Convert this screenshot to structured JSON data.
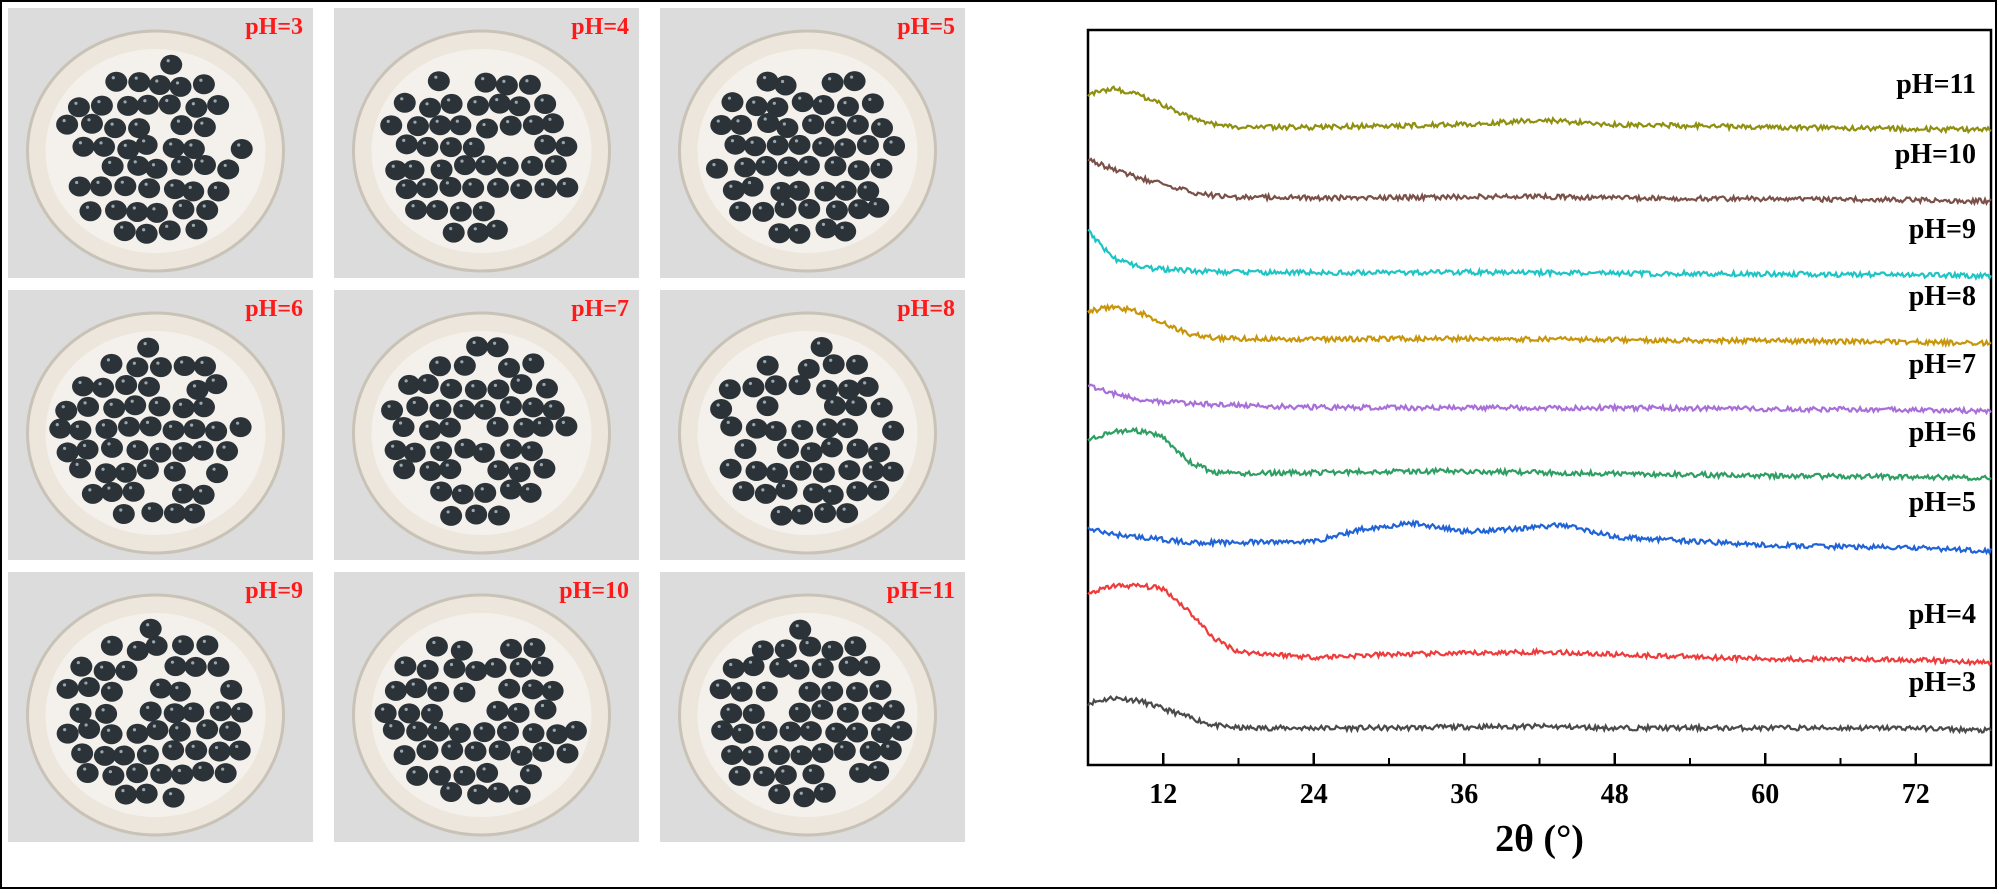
{
  "photos": [
    {
      "label": "pH=3"
    },
    {
      "label": "pH=4"
    },
    {
      "label": "pH=5"
    },
    {
      "label": "pH=6"
    },
    {
      "label": "pH=7"
    },
    {
      "label": "pH=8"
    },
    {
      "label": "pH=9"
    },
    {
      "label": "pH=10"
    },
    {
      "label": "pH=11"
    }
  ],
  "colors": {
    "label_red": "#ff1a1a",
    "bead": "#2b3338",
    "dish": "#ece6dc",
    "background": "#dcdcdc"
  },
  "chart_data": {
    "type": "line",
    "xlabel": "2θ (°)",
    "ylabel": "",
    "xlim": [
      6,
      78
    ],
    "xticks": [
      12,
      24,
      36,
      48,
      60,
      72
    ],
    "y_ticks_shown": false,
    "legend": "labels at right end of each curve",
    "note_values": "relative intensity, curves vertically stacked (offset)",
    "series": [
      {
        "name": "pH=3",
        "color": "#4a4a4a",
        "x": [
          6,
          8,
          10,
          12,
          14,
          16,
          18,
          24,
          30,
          36,
          42,
          48,
          60,
          72,
          78
        ],
        "y": [
          0.45,
          0.55,
          0.5,
          0.35,
          0.2,
          0.05,
          0.0,
          0.0,
          0.0,
          0.02,
          0.03,
          0.0,
          0.0,
          0.0,
          -0.05
        ]
      },
      {
        "name": "pH=4",
        "color": "#ee3b3b",
        "x": [
          6,
          8,
          10,
          12,
          14,
          16,
          18,
          24,
          30,
          36,
          42,
          48,
          60,
          72,
          78
        ],
        "y": [
          1.2,
          1.35,
          1.35,
          1.3,
          0.9,
          0.4,
          0.15,
          0.05,
          0.1,
          0.12,
          0.15,
          0.1,
          0.02,
          0.0,
          -0.05
        ]
      },
      {
        "name": "pH=5",
        "color": "#1f63d6",
        "x": [
          6,
          8,
          10,
          12,
          14,
          16,
          18,
          24,
          28,
          32,
          36,
          40,
          44,
          48,
          60,
          72,
          78
        ],
        "y": [
          0.35,
          0.25,
          0.2,
          0.15,
          0.1,
          0.1,
          0.1,
          0.12,
          0.35,
          0.45,
          0.3,
          0.35,
          0.42,
          0.2,
          0.05,
          0.0,
          -0.05
        ]
      },
      {
        "name": "pH=6",
        "color": "#2e9e62",
        "x": [
          6,
          8,
          10,
          12,
          14,
          16,
          18,
          24,
          30,
          36,
          42,
          48,
          60,
          72,
          78
        ],
        "y": [
          0.7,
          0.85,
          0.85,
          0.75,
          0.3,
          0.1,
          0.08,
          0.1,
          0.12,
          0.12,
          0.1,
          0.08,
          0.04,
          0.02,
          0.0
        ]
      },
      {
        "name": "pH=7",
        "color": "#a86fd9",
        "x": [
          6,
          8,
          10,
          12,
          14,
          16,
          18,
          24,
          30,
          36,
          42,
          48,
          60,
          72,
          78
        ],
        "y": [
          0.45,
          0.3,
          0.2,
          0.15,
          0.12,
          0.1,
          0.08,
          0.05,
          0.04,
          0.04,
          0.04,
          0.04,
          0.02,
          0.0,
          -0.02
        ]
      },
      {
        "name": "pH=8",
        "color": "#c9960a",
        "x": [
          6,
          8,
          10,
          12,
          14,
          16,
          18,
          24,
          30,
          36,
          42,
          48,
          60,
          72,
          78
        ],
        "y": [
          0.55,
          0.65,
          0.55,
          0.35,
          0.15,
          0.08,
          0.06,
          0.05,
          0.06,
          0.06,
          0.05,
          0.04,
          0.02,
          0.0,
          -0.02
        ]
      },
      {
        "name": "pH=9",
        "color": "#1fc4c4",
        "x": [
          6,
          7,
          8,
          10,
          12,
          14,
          16,
          18,
          24,
          30,
          36,
          42,
          48,
          60,
          72,
          78
        ],
        "y": [
          0.8,
          0.55,
          0.3,
          0.15,
          0.1,
          0.08,
          0.06,
          0.05,
          0.04,
          0.04,
          0.05,
          0.04,
          0.03,
          0.02,
          0.0,
          -0.02
        ]
      },
      {
        "name": "pH=10",
        "color": "#7a5048",
        "x": [
          6,
          8,
          10,
          12,
          14,
          16,
          18,
          24,
          30,
          36,
          42,
          48,
          60,
          72,
          78
        ],
        "y": [
          0.75,
          0.55,
          0.4,
          0.3,
          0.15,
          0.08,
          0.05,
          0.04,
          0.04,
          0.06,
          0.06,
          0.04,
          0.02,
          0.0,
          -0.02
        ]
      },
      {
        "name": "pH=11",
        "color": "#8f8f10",
        "x": [
          6,
          8,
          10,
          12,
          14,
          16,
          18,
          24,
          30,
          36,
          42,
          48,
          60,
          72,
          78
        ],
        "y": [
          0.65,
          0.75,
          0.65,
          0.45,
          0.25,
          0.1,
          0.05,
          0.05,
          0.08,
          0.1,
          0.18,
          0.1,
          0.05,
          0.02,
          0.0
        ]
      }
    ]
  }
}
